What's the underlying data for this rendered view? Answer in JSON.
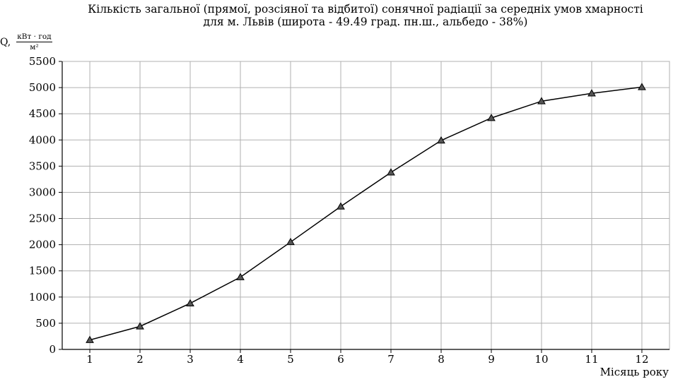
{
  "chart_data": {
    "type": "line",
    "title_lines": [
      "Кількість загальної (прямої, розсіяної та відбитої) сонячної радіації за середніх умов хмарності",
      "для м. Львів (широта - 49.49 град. пн.ш., альбедо - 38%)"
    ],
    "ylabel": {
      "symbol": "Q,",
      "unit_numerator": "кВт · год",
      "unit_denominator": "м²"
    },
    "xlabel": "Місяць року",
    "x": [
      1,
      2,
      3,
      4,
      5,
      6,
      7,
      8,
      9,
      10,
      11,
      12
    ],
    "series": [
      {
        "values": [
          180,
          440,
          880,
          1380,
          2050,
          2730,
          3380,
          3990,
          4420,
          4740,
          4890,
          5010
        ]
      }
    ],
    "xlim": [
      0.45,
      12.55
    ],
    "ylim": [
      0,
      5500
    ],
    "yticks": [
      0,
      500,
      1000,
      1500,
      2000,
      2500,
      3000,
      3500,
      4000,
      4500,
      5000,
      5500
    ],
    "grid": true,
    "marker": "triangle",
    "colors": {
      "line": "#000000",
      "marker_fill": "#555555",
      "grid": "#b0b0b0",
      "axis": "#000000"
    }
  }
}
